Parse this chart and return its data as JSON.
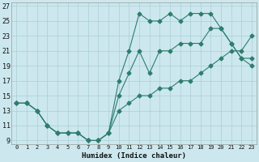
{
  "xlabel": "Humidex (Indice chaleur)",
  "ylabel": "",
  "bg_color": "#cce8ee",
  "line_color": "#2e7d6e",
  "grid_color": "#aacdd6",
  "xlim": [
    -0.5,
    23.5
  ],
  "ylim": [
    8.5,
    27.5
  ],
  "xticks": [
    0,
    1,
    2,
    3,
    4,
    5,
    6,
    7,
    8,
    9,
    10,
    11,
    12,
    13,
    14,
    15,
    16,
    17,
    18,
    19,
    20,
    21,
    22,
    23
  ],
  "yticks": [
    9,
    11,
    13,
    15,
    17,
    19,
    21,
    23,
    25,
    27
  ],
  "line_upper_x": [
    0,
    1,
    2,
    3,
    4,
    5,
    6,
    7,
    8,
    9,
    10,
    11,
    12,
    13,
    14,
    15,
    16,
    17,
    18,
    19,
    20,
    21,
    22,
    23
  ],
  "line_upper_y": [
    14,
    14,
    13,
    11,
    10,
    10,
    10,
    9,
    9,
    10,
    17,
    21,
    26,
    25,
    25,
    26,
    25,
    26,
    26,
    26,
    24,
    22,
    20,
    19
  ],
  "line_mid_x": [
    0,
    1,
    2,
    3,
    4,
    5,
    6,
    7,
    8,
    9,
    10,
    11,
    12,
    13,
    14,
    15,
    16,
    17,
    18,
    19,
    20,
    21,
    22,
    23
  ],
  "line_mid_y": [
    14,
    14,
    13,
    11,
    10,
    10,
    10,
    9,
    9,
    10,
    15,
    18,
    21,
    18,
    21,
    21,
    22,
    22,
    22,
    24,
    24,
    22,
    20,
    20
  ],
  "line_lower_x": [
    0,
    1,
    2,
    3,
    4,
    5,
    6,
    7,
    8,
    9,
    10,
    11,
    12,
    13,
    14,
    15,
    16,
    17,
    18,
    19,
    20,
    21,
    22,
    23
  ],
  "line_lower_y": [
    14,
    14,
    13,
    11,
    10,
    10,
    10,
    9,
    9,
    10,
    13,
    14,
    15,
    15,
    16,
    16,
    17,
    17,
    18,
    19,
    20,
    21,
    21,
    23
  ]
}
